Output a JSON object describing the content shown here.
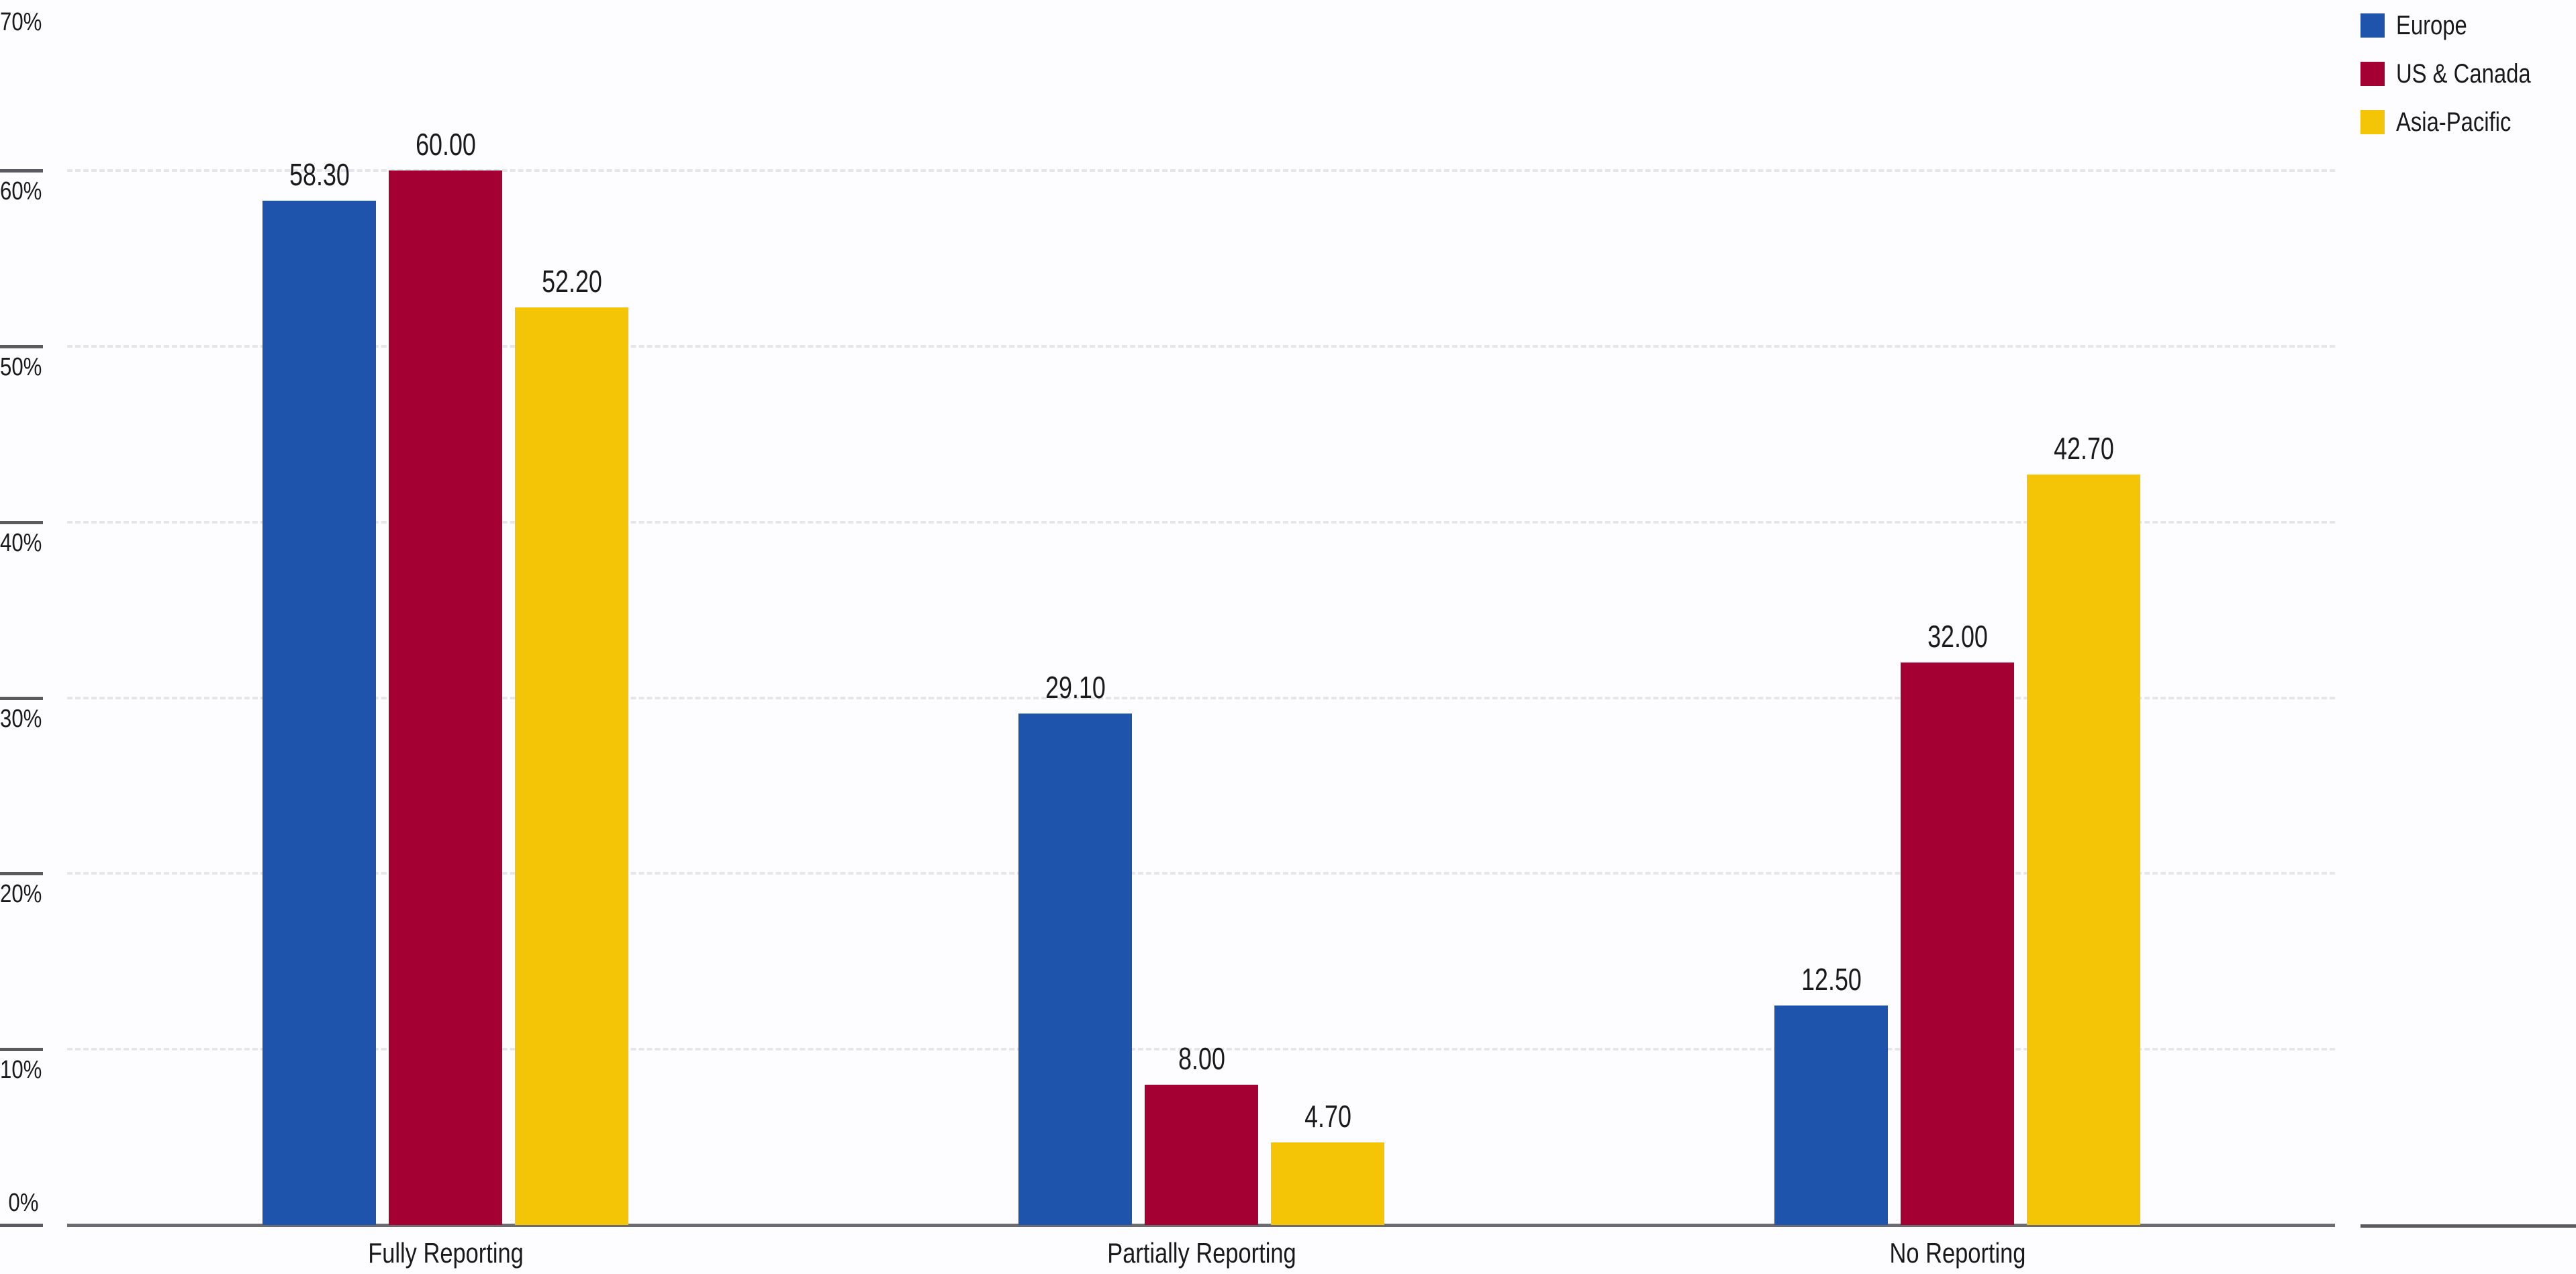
{
  "chart_data": {
    "type": "bar",
    "title": "",
    "xlabel": "",
    "ylabel": "",
    "ylim": [
      0,
      70
    ],
    "y_ticks": [
      "0%",
      "10%",
      "20%",
      "30%",
      "40%",
      "50%",
      "60%",
      "70%"
    ],
    "grid": true,
    "legend_position": "top-right",
    "categories": [
      "Fully Reporting",
      "Partially Reporting",
      "No Reporting"
    ],
    "series": [
      {
        "name": "Europe",
        "color": "#1f54ad",
        "values": [
          58.3,
          29.1,
          12.5
        ],
        "labels": [
          "58.30",
          "29.10",
          "12.50"
        ]
      },
      {
        "name": "US & Canada",
        "color": "#a50034",
        "values": [
          60.0,
          8.0,
          32.0
        ],
        "labels": [
          "60.00",
          "8.00",
          "32.00"
        ]
      },
      {
        "name": "Asia-Pacific",
        "color": "#f4c406",
        "values": [
          52.2,
          4.7,
          42.7
        ],
        "labels": [
          "52.20",
          "4.70",
          "42.70"
        ]
      }
    ]
  },
  "legend": {
    "items": [
      {
        "label": "Europe",
        "color": "#1f54ad"
      },
      {
        "label": "US & Canada",
        "color": "#a50034"
      },
      {
        "label": "Asia-Pacific",
        "color": "#f4c406"
      }
    ]
  }
}
